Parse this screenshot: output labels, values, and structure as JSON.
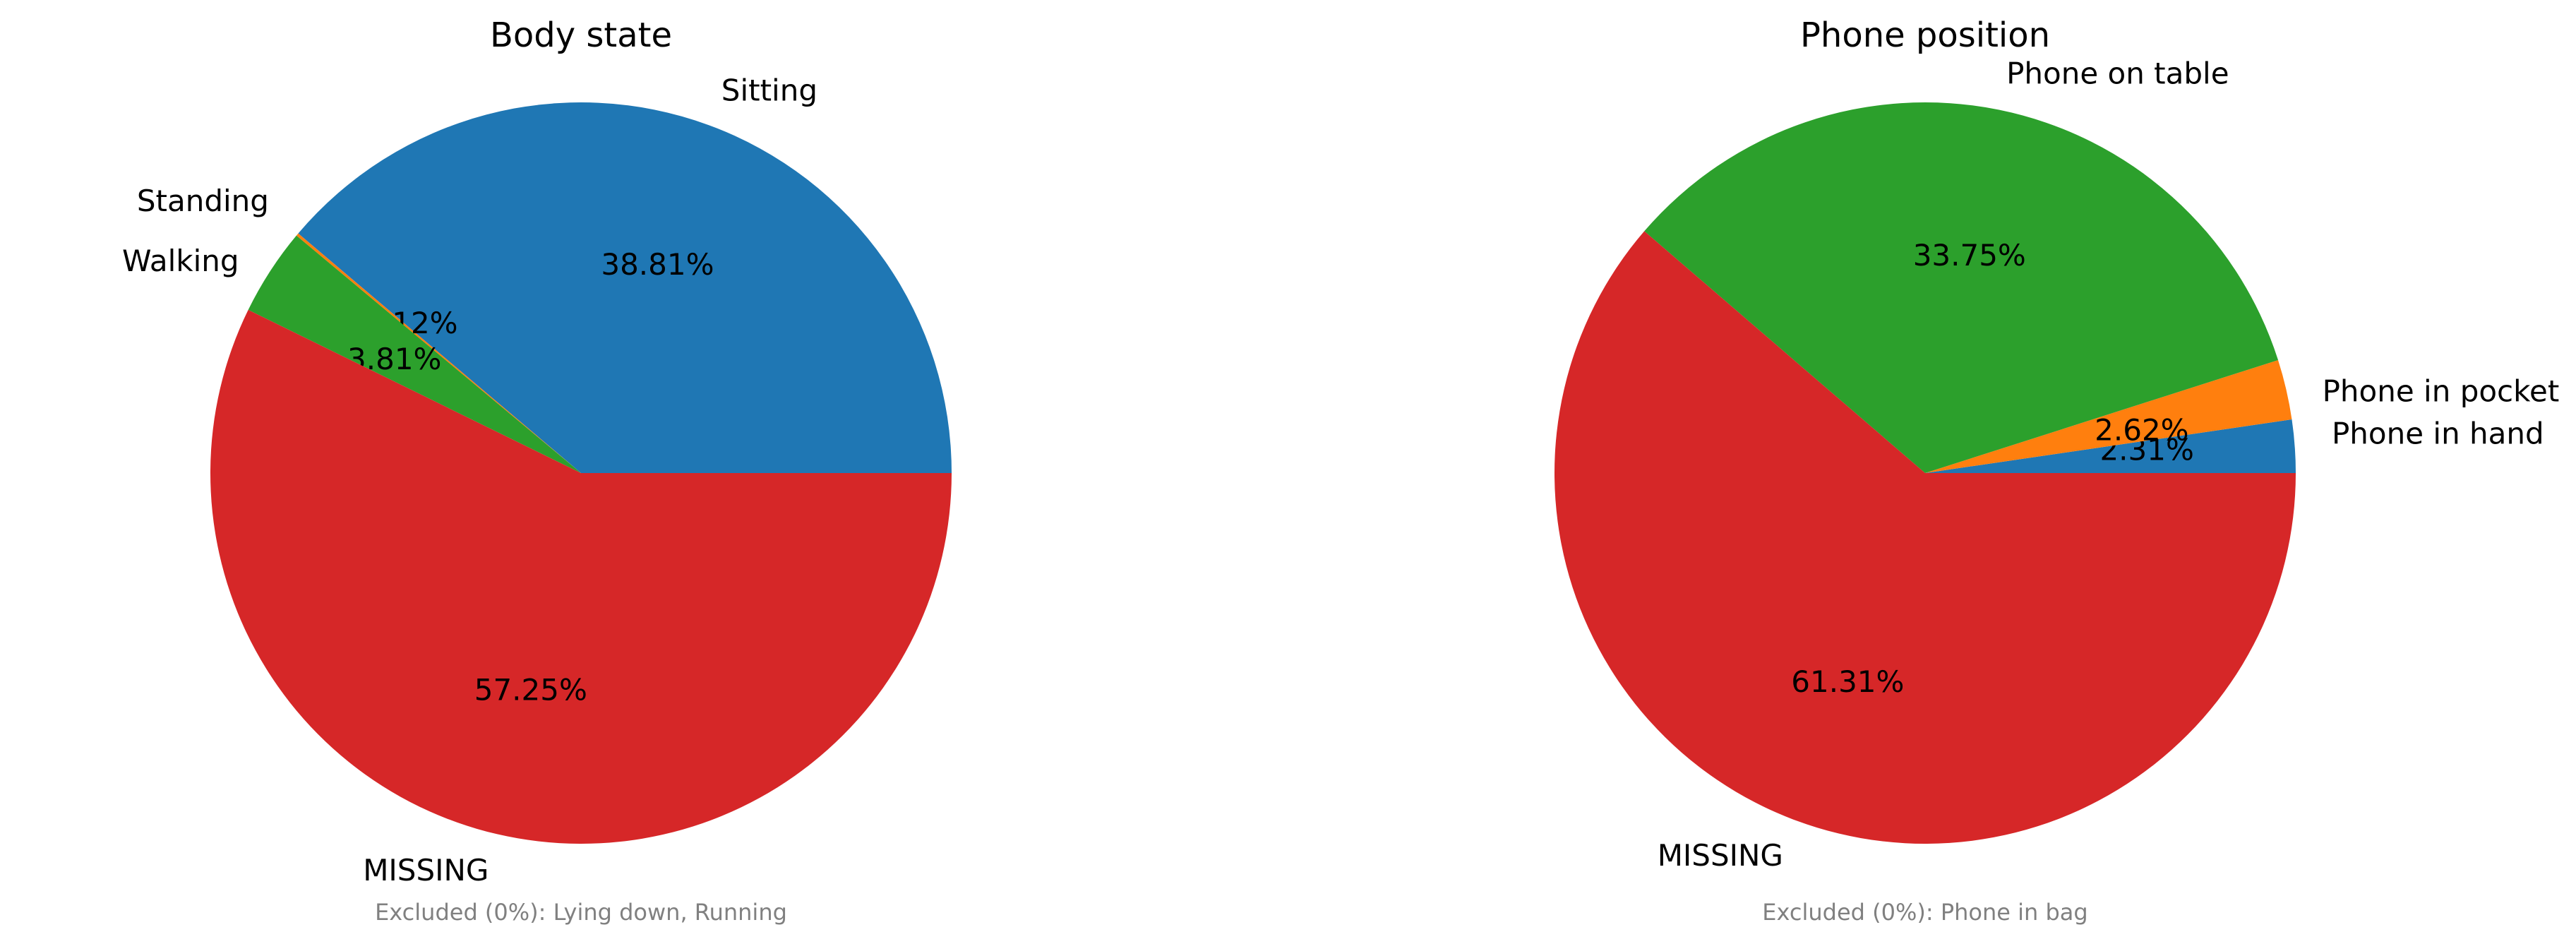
{
  "chart_data": [
    {
      "type": "pie",
      "title": "Body state",
      "slices": [
        {
          "label": "Sitting",
          "pct_label": "38.81%",
          "value": 38.81,
          "color": "#1f77b4"
        },
        {
          "label": "Standing",
          "pct_label": "0.12%",
          "value": 0.12,
          "color": "#ff7f0e"
        },
        {
          "label": "Walking",
          "pct_label": "3.81%",
          "value": 3.81,
          "color": "#2ca02c"
        },
        {
          "label": "MISSING",
          "pct_label": "57.25%",
          "value": 57.25,
          "color": "#d62728"
        }
      ],
      "note": "Excluded (0%): Lying down, Running"
    },
    {
      "type": "pie",
      "title": "Phone position",
      "slices": [
        {
          "label": "Phone in hand",
          "pct_label": "2.31%",
          "value": 2.31,
          "color": "#1f77b4"
        },
        {
          "label": "Phone in pocket",
          "pct_label": "2.62%",
          "value": 2.62,
          "color": "#ff7f0e"
        },
        {
          "label": "Phone on table",
          "pct_label": "33.75%",
          "value": 33.75,
          "color": "#2ca02c"
        },
        {
          "label": "MISSING",
          "pct_label": "61.31%",
          "value": 61.31,
          "color": "#d62728"
        }
      ],
      "note": "Excluded (0%): Phone in bag"
    }
  ]
}
